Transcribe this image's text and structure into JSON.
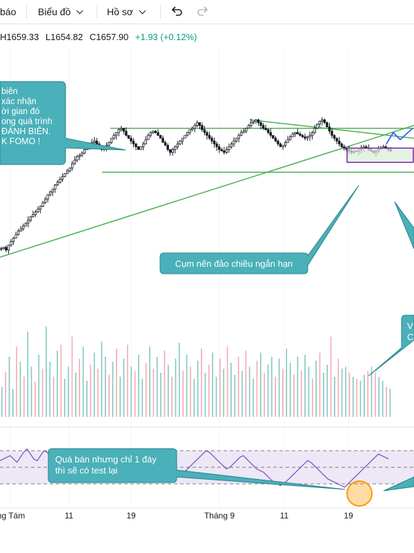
{
  "toolbar": {
    "alert_label": "báo",
    "chart_menu_label": "Biểu đồ",
    "profile_menu_label": "Hồ sơ",
    "undo_icon": "undo-icon",
    "redo_icon": "redo-icon"
  },
  "ohlc": {
    "high": "H1659.33",
    "low": "L1654.82",
    "close": "C1657.90",
    "change": "+1.93 (+0.12%)",
    "change_color": "#089981"
  },
  "annotations": {
    "top_left_callout": [
      "biên",
      "xác nhận",
      "ời gian đó",
      "ong quá trình",
      "",
      "ĐÁNH BIÊN.",
      "K FOMO !"
    ],
    "reversal_callout": "Cụm nến đảo chiều ngắn hạn",
    "rsi_callout": [
      "Quá bán nhưng chỉ 1 đáy",
      "thì sẽ có test lại"
    ],
    "volume_callout": [
      "V",
      "C"
    ]
  },
  "colors": {
    "up_candle": "#131722",
    "down_candle": "#131722",
    "trend_line": "#4caf50",
    "callout_fill": "#4ab0b9",
    "callout_border": "#26838c",
    "vol_up": "#80c8c0",
    "vol_down": "#f5a8b0",
    "rsi_line": "#7e57c2",
    "rsi_band": "#ede7f6",
    "box_border": "#7b1fa2",
    "box_fill": "#d9ecd9",
    "circle": "#ff9800",
    "projection": "#2962ff"
  },
  "chart_data": {
    "type": "candlestick",
    "x_tick_labels": [
      "ng Tám",
      "11",
      "19",
      "Tháng 9",
      "11",
      "19"
    ],
    "ohlc_last": {
      "high": 1659.33,
      "low": 1654.82,
      "close": 1657.9,
      "change": 1.93,
      "change_pct": 0.12
    },
    "price_path": [
      1520,
      1522,
      1518,
      1525,
      1530,
      1535,
      1540,
      1545,
      1548,
      1552,
      1556,
      1560,
      1565,
      1568,
      1572,
      1576,
      1580,
      1585,
      1590,
      1596,
      1600,
      1604,
      1610,
      1614,
      1618,
      1622,
      1626,
      1630,
      1634,
      1640,
      1645,
      1650,
      1652,
      1655,
      1660,
      1664,
      1668,
      1670,
      1672,
      1668,
      1664,
      1660,
      1662,
      1666,
      1670,
      1676,
      1680,
      1684,
      1688,
      1690,
      1686,
      1680,
      1676,
      1672,
      1668,
      1664,
      1660,
      1664,
      1668,
      1674,
      1680,
      1684,
      1686,
      1684,
      1680,
      1676,
      1670,
      1666,
      1660,
      1656,
      1660,
      1664,
      1668,
      1672,
      1676,
      1680,
      1684,
      1688,
      1690,
      1694,
      1698,
      1694,
      1688,
      1684,
      1680,
      1676,
      1672,
      1668,
      1664,
      1660,
      1658,
      1656,
      1660,
      1664,
      1668,
      1672,
      1676,
      1680,
      1684,
      1686,
      1690,
      1694,
      1698,
      1700,
      1702,
      1698,
      1694,
      1690,
      1688,
      1684,
      1680,
      1676,
      1672,
      1668,
      1664,
      1666,
      1670,
      1674,
      1678,
      1682,
      1684,
      1682,
      1680,
      1678,
      1676,
      1678,
      1680,
      1684,
      1690,
      1696,
      1700,
      1702,
      1698,
      1692,
      1686,
      1680,
      1676,
      1672,
      1668,
      1664,
      1662,
      1660,
      1658,
      1656,
      1657,
      1658,
      1660,
      1662,
      1664,
      1662,
      1660,
      1658,
      1656,
      1658,
      1660,
      1662,
      1664,
      1662,
      1660,
      1658
    ],
    "rsi_levels": [
      70,
      50,
      30
    ],
    "rsi_path": [
      58,
      60,
      62,
      64,
      60,
      56,
      62,
      68,
      72,
      66,
      60,
      58,
      64,
      70,
      68,
      62,
      58,
      60,
      64,
      66,
      62,
      60,
      58,
      56,
      60,
      64,
      62,
      58,
      54,
      50,
      46,
      42,
      40,
      44,
      48,
      52,
      56,
      60,
      64,
      62,
      58,
      56,
      54,
      58,
      62,
      66,
      64,
      60,
      56,
      52,
      48,
      44,
      40,
      38,
      42,
      46,
      50,
      54,
      58,
      62,
      66,
      70,
      68,
      64,
      60,
      56,
      52,
      48,
      50,
      54,
      58,
      62,
      64,
      60,
      56,
      52,
      48,
      46,
      44,
      40,
      36,
      32,
      30,
      28,
      30,
      34,
      38,
      42,
      46,
      50,
      54,
      58,
      56,
      52,
      48,
      44,
      40,
      36,
      34,
      32,
      30,
      28,
      26,
      30,
      34,
      38,
      42,
      46,
      50,
      54,
      58,
      62,
      66,
      64,
      62,
      60
    ],
    "volume_path": [
      30,
      45,
      60,
      28,
      70,
      55,
      40,
      85,
      50,
      35,
      62,
      48,
      90,
      55,
      40,
      66,
      72,
      38,
      50,
      80,
      44,
      58,
      70,
      36,
      52,
      64,
      48,
      75,
      60,
      42,
      55,
      68,
      40,
      58,
      72,
      50,
      46,
      62,
      38,
      54,
      70,
      48,
      60,
      44,
      66,
      52,
      40,
      58,
      74,
      46,
      62,
      50,
      38,
      56,
      68,
      44,
      52,
      64,
      40,
      58,
      48,
      70,
      54,
      42,
      60,
      46,
      66,
      50,
      38,
      56,
      64,
      44,
      52,
      60,
      40,
      58,
      48,
      68,
      54,
      42,
      60,
      46,
      62,
      50,
      38,
      56,
      64,
      44,
      52,
      80,
      40,
      58,
      48,
      50,
      44,
      40,
      38,
      36,
      42,
      46,
      50,
      44,
      40,
      36,
      30,
      28
    ],
    "horizontal_levels": [
      1690,
      1628
    ],
    "reversal_box": {
      "top": 1662,
      "bottom": 1642
    },
    "projection": [
      1668,
      1684,
      1674,
      1690
    ]
  }
}
